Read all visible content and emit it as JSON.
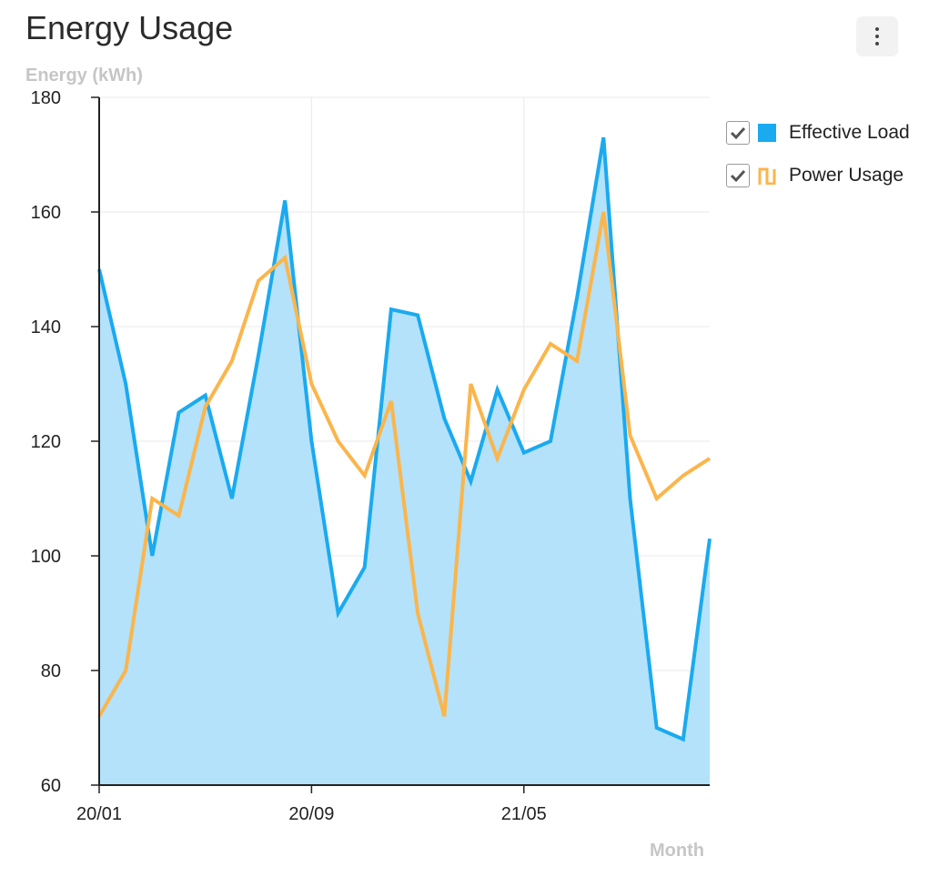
{
  "header": {
    "title": "Energy Usage",
    "menu_icon": "more-vertical-icon"
  },
  "colors": {
    "effective": "#1aaaf0",
    "effective_fill": "#b3e2fa",
    "power": "#fbb54b"
  },
  "legend": {
    "items": [
      {
        "label": "Effective Load",
        "checked": true,
        "icon": "square-icon"
      },
      {
        "label": "Power Usage",
        "checked": true,
        "icon": "square-wave-icon"
      }
    ]
  },
  "chart_data": {
    "type": "line",
    "ylabel": "Energy (kWh)",
    "xlabel": "Month",
    "ylim": [
      60,
      180
    ],
    "yticks": [
      60,
      80,
      100,
      120,
      140,
      160,
      180
    ],
    "x": [
      "20/01",
      "20/02",
      "20/03",
      "20/04",
      "20/05",
      "20/06",
      "20/07",
      "20/08",
      "20/09",
      "20/10",
      "20/11",
      "20/12",
      "21/01",
      "21/02",
      "21/03",
      "21/04",
      "21/05",
      "21/06",
      "21/07",
      "21/08",
      "21/09",
      "21/10",
      "21/11",
      "21/12"
    ],
    "xtick_labels": [
      "20/01",
      "20/09",
      "21/05"
    ],
    "grid": true,
    "legend_position": "right",
    "series": [
      {
        "name": "Effective Load",
        "type": "area",
        "values": [
          150,
          130,
          100,
          125,
          128,
          110,
          135,
          162,
          120,
          90,
          98,
          143,
          142,
          124,
          113,
          129,
          118,
          120,
          145,
          173,
          110,
          70,
          68,
          103
        ]
      },
      {
        "name": "Power Usage",
        "type": "line",
        "values": [
          72,
          80,
          110,
          107,
          126,
          134,
          148,
          152,
          130,
          120,
          114,
          127,
          90,
          72,
          130,
          117,
          129,
          137,
          134,
          160,
          121,
          110,
          114,
          117
        ]
      }
    ]
  }
}
